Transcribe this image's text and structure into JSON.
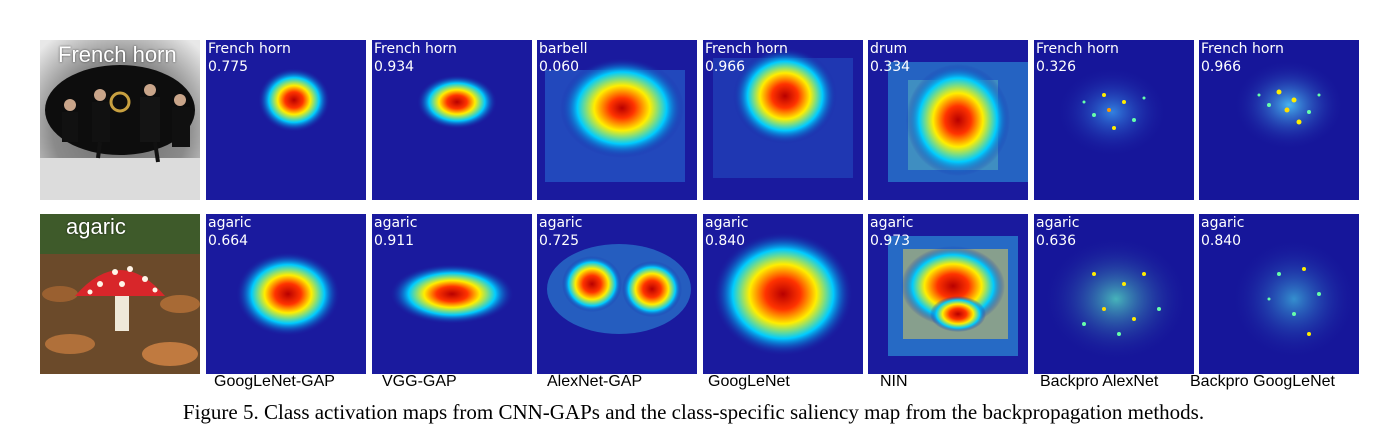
{
  "rows": [
    {
      "input_label": "French horn",
      "maps": [
        {
          "cls": "French horn",
          "score": "0.775"
        },
        {
          "cls": "French horn",
          "score": "0.934"
        },
        {
          "cls": "barbell",
          "score": "0.060"
        },
        {
          "cls": "French horn",
          "score": "0.966"
        },
        {
          "cls": "drum",
          "score": "0.334"
        },
        {
          "cls": "French horn",
          "score": "0.326"
        },
        {
          "cls": "French horn",
          "score": "0.966"
        }
      ]
    },
    {
      "input_label": "agaric",
      "maps": [
        {
          "cls": "agaric",
          "score": "0.664"
        },
        {
          "cls": "agaric",
          "score": "0.911"
        },
        {
          "cls": "agaric",
          "score": "0.725"
        },
        {
          "cls": "agaric",
          "score": "0.840"
        },
        {
          "cls": "agaric",
          "score": "0.973"
        },
        {
          "cls": "agaric",
          "score": "0.636"
        },
        {
          "cls": "agaric",
          "score": "0.840"
        }
      ]
    }
  ],
  "methods": [
    "GoogLeNet-GAP",
    "VGG-GAP",
    "AlexNet-GAP",
    "GoogLeNet",
    "NIN",
    "Backpro AlexNet",
    "Backpro GoogLeNet"
  ],
  "caption": "Figure 5. Class activation maps from CNN-GAPs and the class-specific saliency map from the backpropagation methods.",
  "colors": {
    "map_background": "#1a1a9e",
    "heat_hot": "#cc0000",
    "heat_warm": "#ffee00",
    "heat_cool": "#00ccff"
  }
}
